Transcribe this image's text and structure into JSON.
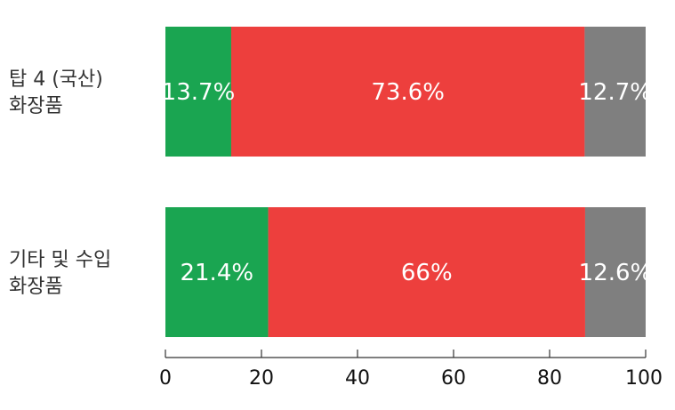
{
  "chart_data": {
    "type": "bar",
    "orientation": "horizontal",
    "stacked": true,
    "categories": [
      [
        "탑 4 (국산)",
        "화장품"
      ],
      [
        "기타 및 수입",
        "화장품"
      ]
    ],
    "series": [
      {
        "color": "#1aa551",
        "values": [
          13.7,
          21.4
        ],
        "labels": [
          "13.7%",
          "21.4%"
        ]
      },
      {
        "color": "#ed3f3d",
        "values": [
          73.6,
          66.0
        ],
        "labels": [
          "73.6%",
          "66%"
        ]
      },
      {
        "color": "#7f7f7f",
        "values": [
          12.7,
          12.6
        ],
        "labels": [
          "12.7%",
          "12.6%"
        ]
      }
    ],
    "xlim": [
      0,
      100
    ],
    "xticks": [
      0,
      20,
      40,
      60,
      80,
      100
    ],
    "xtick_labels": [
      "0",
      "20",
      "40",
      "60",
      "80",
      "100"
    ],
    "grid": false,
    "legend": "none"
  }
}
